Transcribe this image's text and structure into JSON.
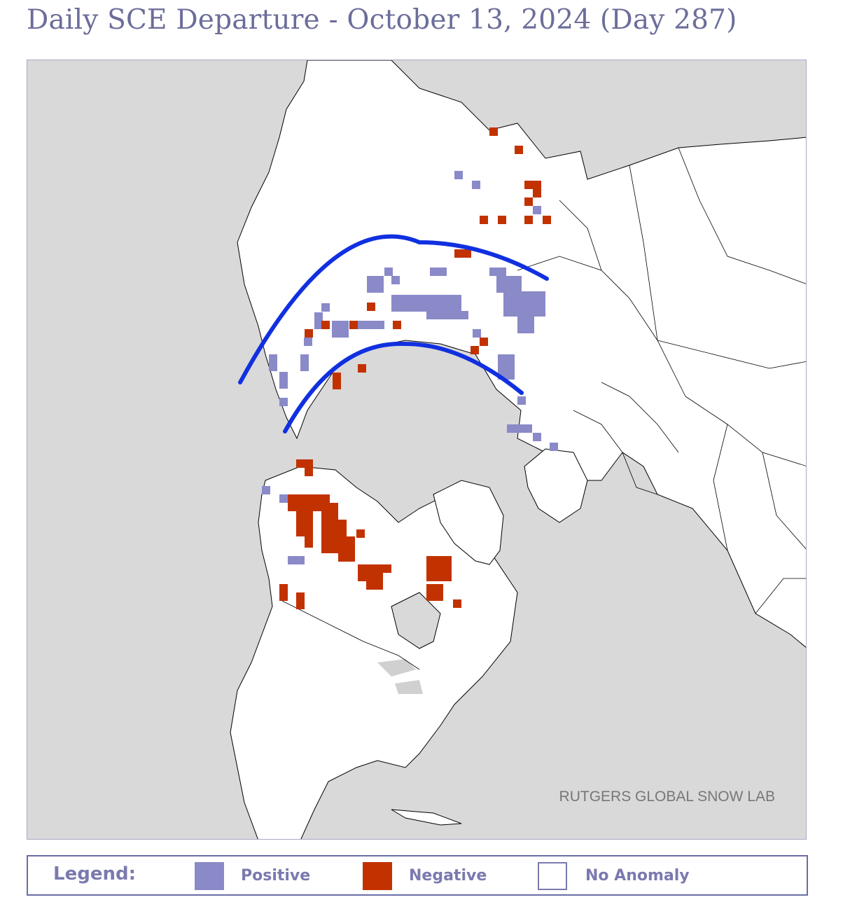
{
  "title": "Daily SCE Departure - October 13, 2024 (Day 287)",
  "credit": "RUTGERS GLOBAL SNOW LAB",
  "legend": {
    "title": "Legend:",
    "items": [
      {
        "label": "Positive",
        "color": "#8a8ac8"
      },
      {
        "label": "Negative",
        "color": "#c23200"
      },
      {
        "label": "No Anomaly",
        "color": "#ffffff"
      }
    ]
  },
  "colors": {
    "ocean": "#d9d9d9",
    "land": "#ffffff",
    "positive": "#8a8ac8",
    "negative": "#c23200",
    "annotation_arcs": "#1030e0",
    "title_text": "#6b6d9a"
  }
}
